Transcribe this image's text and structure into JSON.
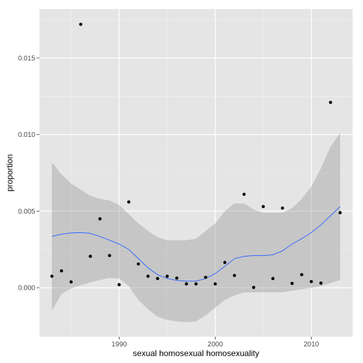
{
  "chart_data": {
    "type": "scatter",
    "title": "",
    "xlabel": "sexual homosexual homosexuality",
    "ylabel": "proportion",
    "xlim": [
      1981.7,
      2014.3
    ],
    "ylim": [
      -0.0032,
      0.0182
    ],
    "x_ticks": [
      1990,
      2000,
      2010
    ],
    "x_tick_labels": [
      "1990",
      "2000",
      "2010"
    ],
    "y_ticks": [
      0.0,
      0.005,
      0.01,
      0.015
    ],
    "y_tick_labels": [
      "0.000",
      "0.005",
      "0.010",
      "0.015"
    ],
    "grid": true,
    "legend": "none",
    "colors": {
      "panel": "#e5e5e5",
      "grid_major": "#ffffff",
      "grid_minor": "#f2f2f2",
      "points": "#000000",
      "smooth_line": "#3366ff",
      "ribbon": "#999999"
    },
    "points": {
      "x": [
        1983,
        1984,
        1985,
        1986,
        1987,
        1988,
        1989,
        1990,
        1991,
        1992,
        1993,
        1994,
        1995,
        1996,
        1997,
        1998,
        1999,
        2000,
        2001,
        2002,
        2003,
        2004,
        2005,
        2006,
        2007,
        2008,
        2009,
        2010,
        2011,
        2012,
        2013
      ],
      "y": [
        0.00075,
        0.0011,
        0.00038,
        0.0172,
        0.00205,
        0.0045,
        0.0021,
        0.0002,
        0.0056,
        0.00155,
        0.00075,
        0.0006,
        0.00075,
        0.00063,
        0.00025,
        0.00025,
        0.00068,
        0.00025,
        0.00165,
        0.0008,
        0.0061,
        2e-05,
        0.0053,
        0.0006,
        0.0052,
        0.00028,
        0.00085,
        0.0004,
        0.0003,
        0.0121,
        0.0049
      ]
    },
    "smooth": {
      "x": [
        1983,
        1984,
        1985,
        1986,
        1987,
        1988,
        1989,
        1990,
        1991,
        1992,
        1993,
        1994,
        1995,
        1996,
        1997,
        1998,
        1999,
        2000,
        2001,
        2002,
        2003,
        2004,
        2005,
        2006,
        2007,
        2008,
        2009,
        2010,
        2011,
        2012,
        2013
      ],
      "fit": [
        0.00335,
        0.0035,
        0.00358,
        0.0036,
        0.00355,
        0.00335,
        0.0031,
        0.00285,
        0.0025,
        0.0019,
        0.0013,
        0.00085,
        0.0006,
        0.00048,
        0.00043,
        0.00043,
        0.0006,
        0.00092,
        0.0014,
        0.0019,
        0.00205,
        0.0021,
        0.0021,
        0.00215,
        0.0024,
        0.00285,
        0.0032,
        0.0036,
        0.0041,
        0.0047,
        0.0053
      ],
      "lower": [
        -0.0015,
        -0.0004,
        -5e-05,
        0.00015,
        0.00035,
        0.0005,
        0.00065,
        0.0006,
        0.0001,
        -0.0008,
        -0.0014,
        -0.0019,
        -0.0021,
        -0.0022,
        -0.00225,
        -0.0022,
        -0.0018,
        -0.0013,
        -0.0008,
        -0.0005,
        -0.0003,
        -0.0003,
        -0.0003,
        -0.0003,
        -0.0003,
        -0.0002,
        -0.0001,
        0.0,
        0.0001,
        0.0003,
        0.0005
      ],
      "upper": [
        0.0082,
        0.0074,
        0.0068,
        0.0064,
        0.006,
        0.0058,
        0.0057,
        0.0054,
        0.0048,
        0.0042,
        0.0037,
        0.0033,
        0.0031,
        0.0031,
        0.0031,
        0.0032,
        0.0037,
        0.0042,
        0.005,
        0.0055,
        0.0055,
        0.0051,
        0.0049,
        0.0049,
        0.0049,
        0.0052,
        0.0058,
        0.0066,
        0.0078,
        0.0092,
        0.0101
      ]
    }
  }
}
